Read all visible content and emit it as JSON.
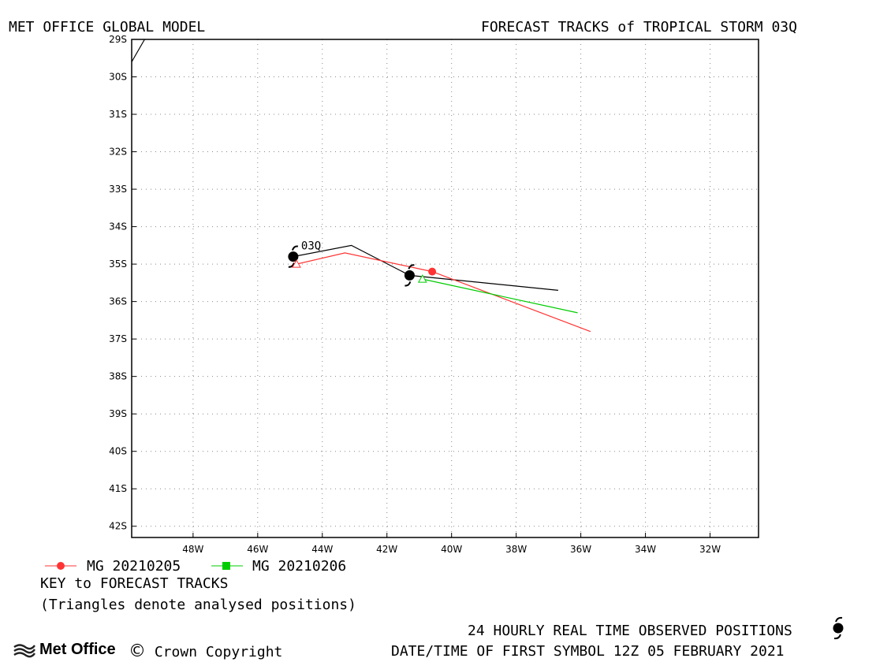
{
  "header": {
    "left_title": "MET OFFICE GLOBAL MODEL",
    "right_title": "FORECAST TRACKS of TROPICAL STORM 03Q"
  },
  "storm_label": "03Q",
  "legend": {
    "series_red": "MG 20210205",
    "series_green": "MG 20210206",
    "key_title": "KEY to FORECAST TRACKS",
    "note": "(Triangles denote analysed positions)"
  },
  "footer": {
    "logo_text": "Met Office",
    "copyright_symbol": "©",
    "copyright": "Crown Copyright",
    "observed_note": "24 HOURLY REAL TIME OBSERVED POSITIONS",
    "datetime_note": "DATE/TIME OF FIRST SYMBOL 12Z 05 FEBRUARY 2021"
  },
  "colors": {
    "observed": "#000000",
    "red": "#ff3333",
    "green": "#00cc00",
    "grid": "#888888"
  },
  "chart_data": {
    "type": "line",
    "xlim": [
      -49.9,
      -30.5
    ],
    "ylim": [
      -42.3,
      -29.0
    ],
    "x_ticks": [
      -48,
      -46,
      -44,
      -42,
      -40,
      -38,
      -36,
      -34,
      -32
    ],
    "x_tick_labels": [
      "48W",
      "46W",
      "44W",
      "42W",
      "40W",
      "38W",
      "36W",
      "34W",
      "32W"
    ],
    "y_ticks": [
      -29,
      -30,
      -31,
      -32,
      -33,
      -34,
      -35,
      -36,
      -37,
      -38,
      -39,
      -40,
      -41,
      -42
    ],
    "y_tick_labels": [
      "29S",
      "30S",
      "31S",
      "32S",
      "33S",
      "34S",
      "35S",
      "36S",
      "37S",
      "38S",
      "39S",
      "40S",
      "41S",
      "42S"
    ],
    "grid": true,
    "coastline": {
      "lon": [
        -49.9,
        -49.5
      ],
      "lat": [
        -29.6,
        -29.0
      ]
    },
    "series": [
      {
        "name": "observed",
        "lon": [
          -44.9,
          -43.1,
          -41.3,
          -36.7
        ],
        "lat": [
          -34.8,
          -34.5,
          -35.3,
          -35.7
        ],
        "symbols": [
          {
            "lon": -44.9,
            "lat": -34.8
          },
          {
            "lon": -41.3,
            "lat": -35.3
          }
        ]
      },
      {
        "name": "MG 20210205",
        "lon": [
          -44.8,
          -43.3,
          -40.6,
          -35.7
        ],
        "lat": [
          -35.0,
          -34.7,
          -35.2,
          -36.8
        ],
        "analysed": {
          "lon": -44.8,
          "lat": -35.0
        },
        "marker": {
          "lon": -40.6,
          "lat": -35.2
        }
      },
      {
        "name": "MG 20210206",
        "lon": [
          -40.9,
          -36.1
        ],
        "lat": [
          -35.4,
          -36.3
        ],
        "analysed": {
          "lon": -40.9,
          "lat": -35.4
        }
      }
    ]
  }
}
